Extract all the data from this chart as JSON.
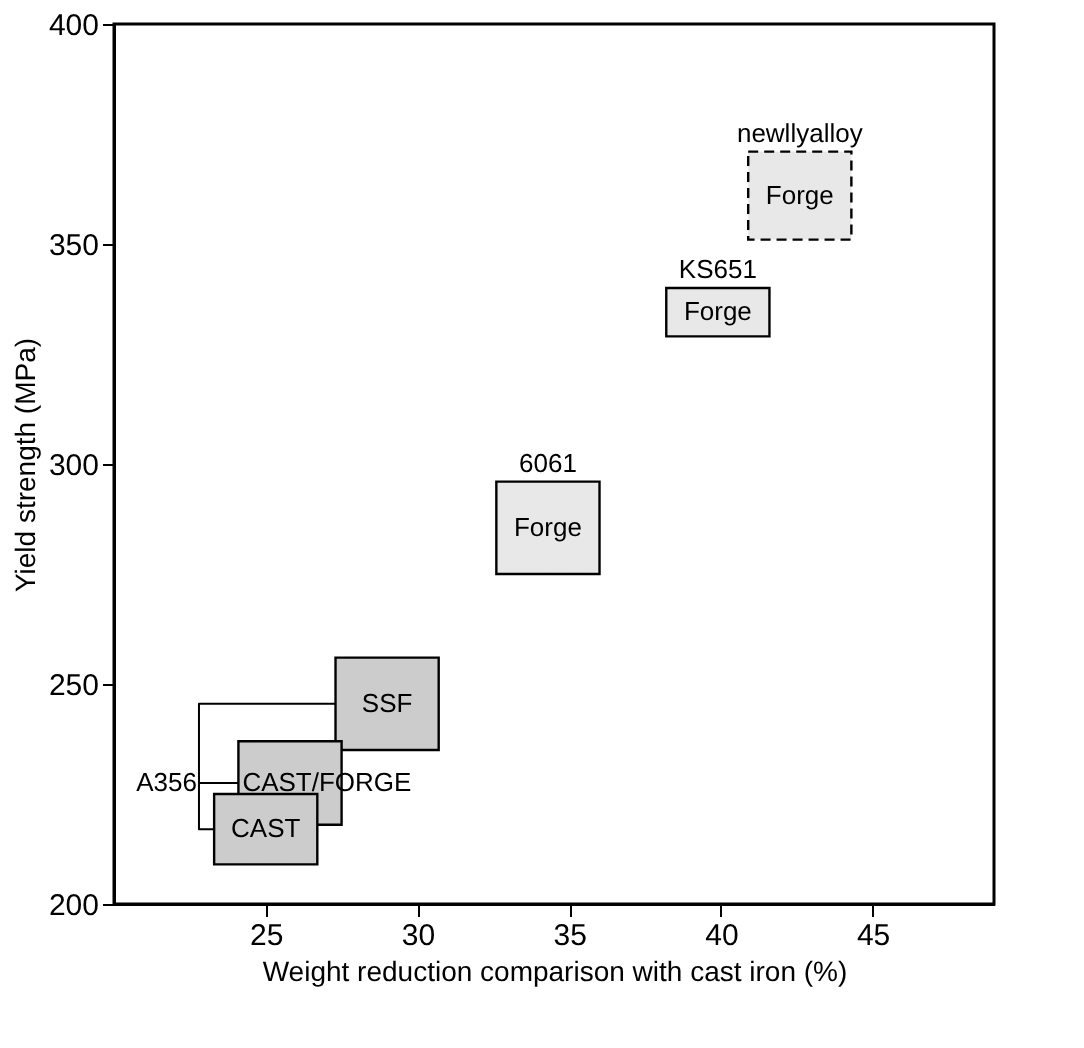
{
  "chart_data": {
    "type": "bar",
    "xlabel": "Weight reduction comparison with cast iron (%)",
    "ylabel": "Yield strength (MPa)",
    "xlim": [
      20,
      49
    ],
    "xticks": [
      25,
      30,
      35,
      40,
      45
    ],
    "ylim": [
      200,
      400
    ],
    "yticks": [
      200,
      250,
      300,
      350,
      400
    ],
    "grid": false,
    "series": [
      {
        "name": "SSF",
        "color": "#cccccc",
        "x": [
          29.0
        ],
        "base": [
          235
        ],
        "values": [
          21
        ]
      },
      {
        "name": "CAST/FORGE",
        "color": "#cccccc",
        "x": [
          25.8
        ],
        "base": [
          218
        ],
        "values": [
          19
        ]
      },
      {
        "name": "CAST",
        "color": "#cccccc",
        "x": [
          25.0
        ],
        "base": [
          209
        ],
        "values": [
          16
        ]
      },
      {
        "name": "Forge",
        "color": "#e8e8e8",
        "x": [
          34.3
        ],
        "base": [
          275
        ],
        "values": [
          21
        ]
      },
      {
        "name": "Forge",
        "color": "#e8e8e8",
        "x": [
          39.9
        ],
        "base": [
          329
        ],
        "values": [
          11
        ]
      },
      {
        "name": "Forge",
        "color": "#e8e8e8",
        "line_style": "dashed",
        "x": [
          42.6
        ],
        "base": [
          351
        ],
        "values": [
          20
        ]
      }
    ],
    "annotations": [
      "A356",
      {
        "text": "6061",
        "x": 34.3,
        "y": 296
      },
      {
        "text": "KS651",
        "x": 39.9,
        "y": 340
      },
      {
        "text": "newllyalloy",
        "x": 42.6,
        "y": 371
      }
    ]
  }
}
